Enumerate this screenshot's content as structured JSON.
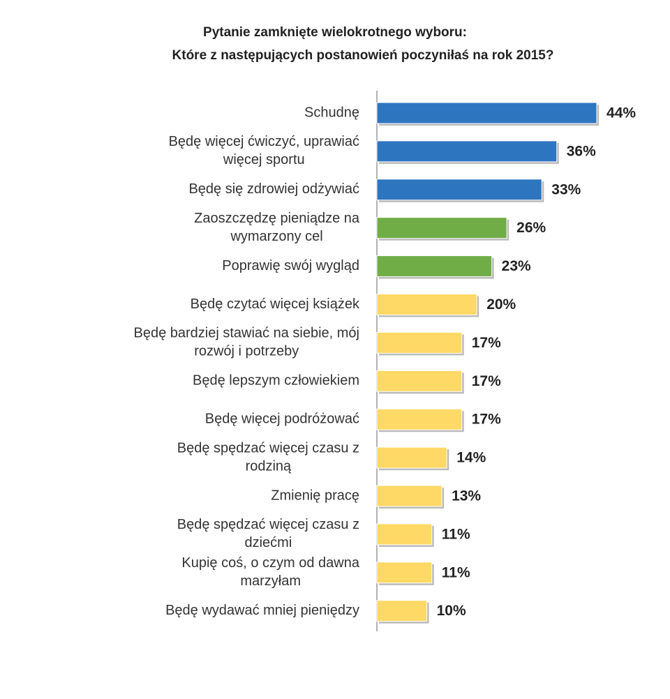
{
  "chart_data": {
    "type": "bar",
    "orientation": "horizontal",
    "title": [
      "Pytanie zamknięte wielokrotnego wyboru:",
      "Które z następujących postanowień poczyniłaś na rok 2015?"
    ],
    "categories": [
      [
        "Schudnę"
      ],
      [
        "Będę więcej ćwiczyć, uprawiać",
        "więcej sportu"
      ],
      [
        "Będę się zdrowiej odżywiać"
      ],
      [
        "Zaoszczędzę pieniądze na",
        "wymarzony cel"
      ],
      [
        "Poprawię swój wygląd"
      ],
      [
        "Będę czytać więcej książek"
      ],
      [
        "Będę bardziej stawiać na siebie, mój",
        "rozwój i potrzeby"
      ],
      [
        "Będę lepszym człowiekiem"
      ],
      [
        "Będę więcej podróżować"
      ],
      [
        "Będę spędzać więcej czasu z",
        "rodziną"
      ],
      [
        "Zmienię pracę"
      ],
      [
        "Będę spędzać więcej czasu z",
        "dziećmi"
      ],
      [
        "Kupię coś, o czym od dawna",
        "marzyłam"
      ],
      [
        "Będę wydawać mniej pieniędzy"
      ]
    ],
    "values": [
      44,
      36,
      33,
      26,
      23,
      20,
      17,
      17,
      17,
      14,
      13,
      11,
      11,
      10
    ],
    "value_labels": [
      "44%",
      "36%",
      "33%",
      "26%",
      "23%",
      "20%",
      "17%",
      "17%",
      "17%",
      "14%",
      "13%",
      "11%",
      "11%",
      "10%"
    ],
    "colors": [
      "#2e75c0",
      "#2e75c0",
      "#2e75c0",
      "#70ad47",
      "#70ad47",
      "#ffd966",
      "#ffd966",
      "#ffd966",
      "#ffd966",
      "#ffd966",
      "#ffd966",
      "#ffd966",
      "#ffd966",
      "#ffd966"
    ]
  }
}
